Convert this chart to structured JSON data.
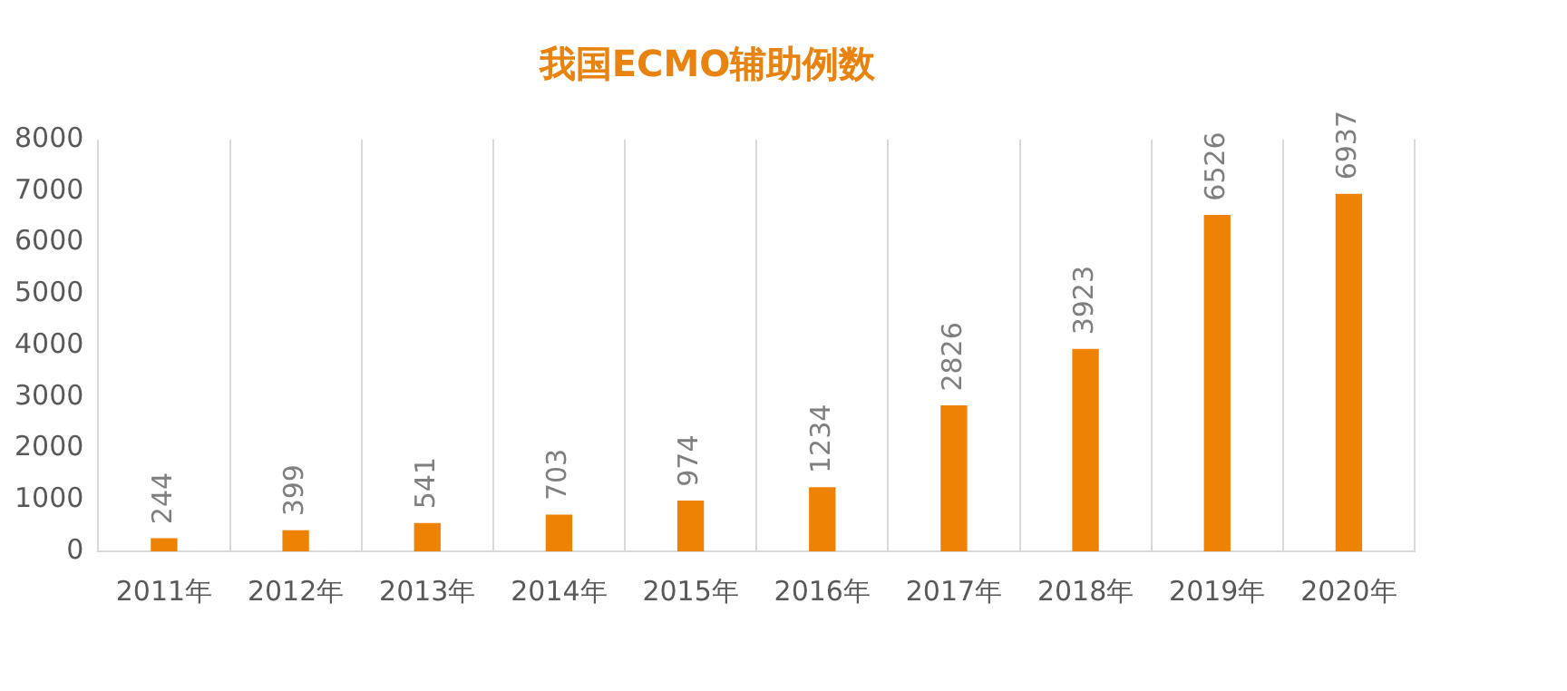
{
  "chart_data": {
    "type": "bar",
    "title": "我国ECMO辅助例数",
    "categories": [
      "2011年",
      "2012年",
      "2013年",
      "2014年",
      "2015年",
      "2016年",
      "2017年",
      "2018年",
      "2019年",
      "2020年"
    ],
    "values": [
      244,
      399,
      541,
      703,
      974,
      1234,
      2826,
      3923,
      6526,
      6937
    ],
    "color": "#ee8204",
    "ylim": [
      0,
      8000
    ],
    "yticks": [
      0,
      1000,
      2000,
      3000,
      4000,
      5000,
      6000,
      7000,
      8000
    ],
    "grid": "x",
    "data_labels": true,
    "legend": false
  }
}
